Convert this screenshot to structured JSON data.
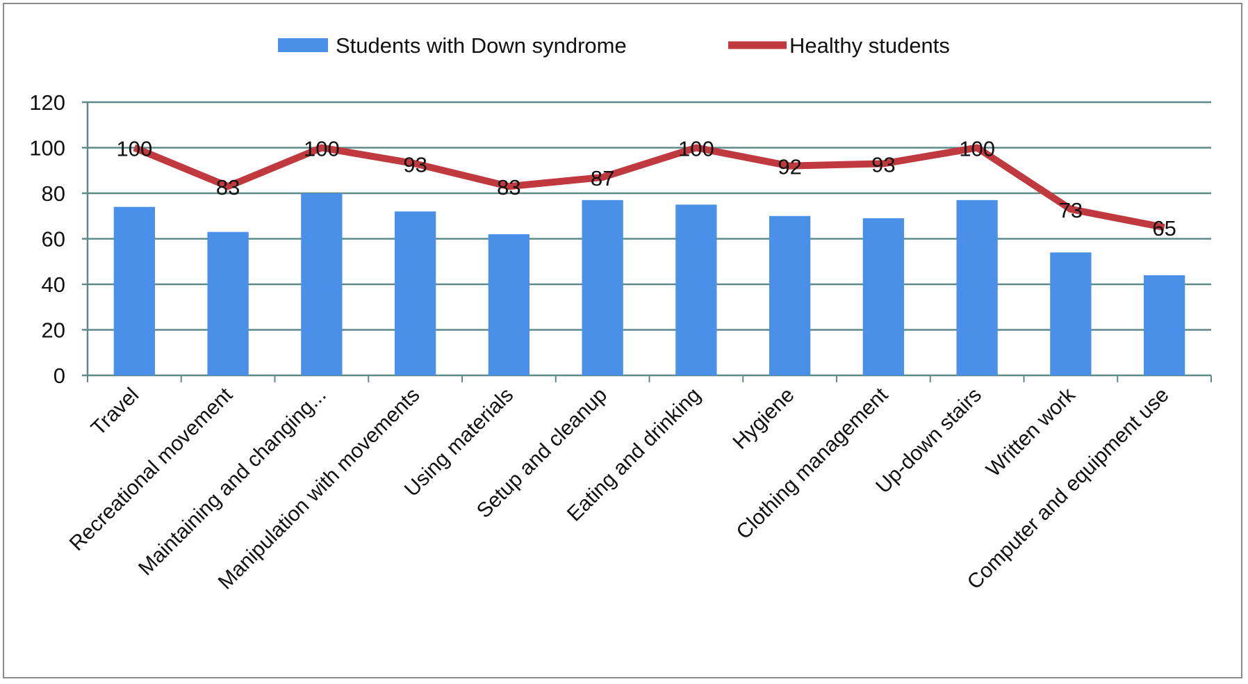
{
  "chart_data": {
    "type": "bar",
    "title": "",
    "xlabel": "",
    "ylabel": "",
    "ylim": [
      0,
      120
    ],
    "yticks": [
      0,
      20,
      40,
      60,
      80,
      100,
      120
    ],
    "grid": true,
    "legend": "top-center",
    "categories": [
      "Travel",
      "Recreational movement",
      "Maintaining and changing...",
      "Manipulation with movements",
      "Using materials",
      "Setup and cleanup",
      "Eating and drinking",
      "Hygiene",
      "Clothing management",
      "Up-down stairs",
      "Written work",
      "Computer and equipment use"
    ],
    "series": [
      {
        "name": "Students with Down syndrome",
        "type": "bar",
        "color": "#4a90e8",
        "values": [
          74,
          63,
          80,
          72,
          62,
          77,
          75,
          70,
          69,
          77,
          54,
          44
        ]
      },
      {
        "name": "Healthy students",
        "type": "line",
        "color": "#c0393f",
        "values": [
          100,
          83,
          100,
          93,
          83,
          87,
          100,
          92,
          93,
          100,
          73,
          65
        ],
        "data_labels": [
          "100",
          "83",
          "100",
          "93",
          "83",
          "87",
          "100",
          "92",
          "93",
          "100",
          "73",
          "65"
        ]
      }
    ]
  }
}
